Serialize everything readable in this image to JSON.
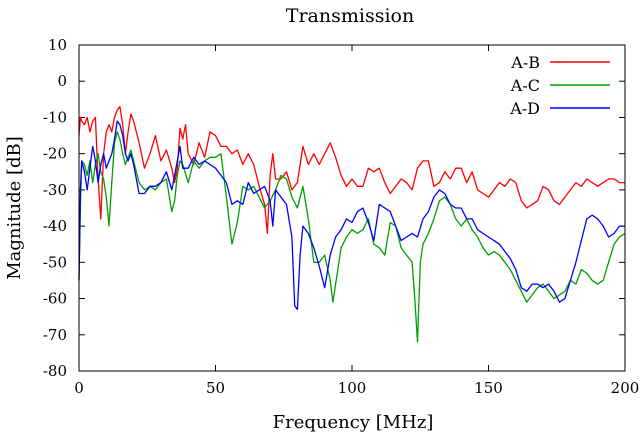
{
  "chart_data": {
    "type": "line",
    "title": "Transmission",
    "xlabel": "Frequency [MHz]",
    "ylabel": "Magnitude [dB]",
    "xlim": [
      0,
      200
    ],
    "ylim": [
      -80,
      10
    ],
    "xticks": [
      0,
      50,
      100,
      150,
      200
    ],
    "yticks": [
      10,
      0,
      -10,
      -20,
      -30,
      -40,
      -50,
      -60,
      -70,
      -80
    ],
    "x_tick_labels": [
      "0",
      "50",
      "100",
      "150",
      "200"
    ],
    "y_tick_labels": [
      "10",
      "0",
      "-10",
      "-20",
      "-30",
      "-40",
      "-50",
      "-60",
      "-70",
      "-80"
    ],
    "legend_position": "top-right",
    "grid": false,
    "series": [
      {
        "name": "A-B",
        "color": "#ff0000",
        "x": [
          0,
          0.5,
          1,
          2,
          3,
          4,
          5,
          6,
          7,
          8,
          9,
          10,
          11,
          12,
          13,
          14,
          15,
          16,
          17,
          18,
          19,
          20,
          22,
          24,
          26,
          28,
          30,
          32,
          34,
          35,
          36,
          37,
          38,
          39,
          40,
          42,
          44,
          46,
          48,
          50,
          52,
          54,
          56,
          58,
          60,
          62,
          64,
          66,
          68,
          69,
          70,
          71,
          72,
          74,
          76,
          78,
          80,
          82,
          84,
          86,
          88,
          90,
          92,
          94,
          96,
          98,
          100,
          102,
          104,
          106,
          108,
          110,
          112,
          114,
          116,
          118,
          120,
          122,
          124,
          126,
          128,
          130,
          132,
          134,
          136,
          138,
          140,
          142,
          144,
          146,
          148,
          150,
          152,
          154,
          156,
          158,
          160,
          162,
          164,
          166,
          168,
          170,
          172,
          174,
          176,
          178,
          180,
          182,
          184,
          186,
          188,
          190,
          192,
          194,
          196,
          198,
          200
        ],
        "y": [
          -15,
          -10,
          -11,
          -12,
          -10,
          -14,
          -11,
          -10,
          -27,
          -38,
          -20,
          -14,
          -12,
          -14,
          -10,
          -8,
          -7,
          -12,
          -20,
          -14,
          -9,
          -11,
          -17,
          -24,
          -20,
          -15,
          -22,
          -19,
          -24,
          -28,
          -24,
          -13,
          -16,
          -12,
          -20,
          -23,
          -17,
          -21,
          -14,
          -15,
          -18,
          -18,
          -20,
          -19,
          -23,
          -20,
          -23,
          -29,
          -34,
          -42,
          -26,
          -20,
          -27,
          -27,
          -25,
          -30,
          -28,
          -18,
          -23,
          -20,
          -23,
          -20,
          -17,
          -21,
          -26,
          -29,
          -27,
          -29,
          -29,
          -24,
          -25,
          -24,
          -28,
          -31,
          -29,
          -27,
          -28,
          -30,
          -24,
          -22,
          -22,
          -29,
          -28,
          -25,
          -27,
          -24,
          -24,
          -28,
          -25,
          -30,
          -31,
          -32,
          -30,
          -28,
          -29,
          -27,
          -28,
          -33,
          -35,
          -34,
          -33,
          -29,
          -30,
          -33,
          -34,
          -32,
          -30,
          -28,
          -29,
          -27,
          -28,
          -29,
          -28,
          -27,
          -27,
          -28,
          -28
        ]
      },
      {
        "name": "A-C",
        "color": "#00a000",
        "x": [
          0,
          0.5,
          1,
          2,
          3,
          4,
          5,
          6,
          7,
          8,
          9,
          10,
          11,
          12,
          13,
          14,
          15,
          16,
          17,
          18,
          19,
          20,
          22,
          24,
          26,
          28,
          30,
          32,
          34,
          35,
          36,
          37,
          38,
          40,
          42,
          44,
          46,
          48,
          50,
          52,
          54,
          56,
          58,
          60,
          62,
          64,
          66,
          68,
          70,
          72,
          74,
          76,
          78,
          80,
          82,
          84,
          86,
          88,
          90,
          92,
          93,
          94,
          96,
          98,
          100,
          102,
          104,
          106,
          108,
          110,
          112,
          114,
          116,
          118,
          120,
          122,
          123,
          124,
          125,
          126,
          128,
          130,
          132,
          134,
          136,
          138,
          140,
          142,
          144,
          146,
          148,
          150,
          152,
          154,
          156,
          158,
          160,
          162,
          164,
          166,
          168,
          170,
          172,
          174,
          176,
          178,
          180,
          182,
          184,
          186,
          188,
          190,
          192,
          194,
          196,
          198,
          200
        ],
        "y": [
          -55,
          -35,
          -22,
          -23,
          -26,
          -22,
          -28,
          -23,
          -20,
          -25,
          -27,
          -32,
          -40,
          -28,
          -17,
          -14,
          -16,
          -20,
          -23,
          -21,
          -19,
          -22,
          -28,
          -30,
          -29,
          -30,
          -28,
          -27,
          -36,
          -33,
          -26,
          -22,
          -23,
          -28,
          -22,
          -24,
          -22,
          -21,
          -21,
          -20,
          -32,
          -45,
          -39,
          -29,
          -30,
          -29,
          -32,
          -35,
          -33,
          -30,
          -26,
          -27,
          -32,
          -35,
          -29,
          -38,
          -50,
          -50,
          -48,
          -55,
          -61,
          -56,
          -46,
          -43,
          -41,
          -42,
          -41,
          -38,
          -45,
          -46,
          -48,
          -39,
          -40,
          -46,
          -48,
          -50,
          -60,
          -72,
          -50,
          -45,
          -42,
          -38,
          -33,
          -32,
          -34,
          -38,
          -40,
          -38,
          -41,
          -43,
          -46,
          -48,
          -47,
          -48,
          -50,
          -52,
          -55,
          -58,
          -61,
          -59,
          -57,
          -56,
          -58,
          -60,
          -59,
          -58,
          -55,
          -56,
          -52,
          -53,
          -55,
          -56,
          -55,
          -50,
          -45,
          -43,
          -42
        ]
      },
      {
        "name": "A-D",
        "color": "#0000ff",
        "x": [
          0,
          0.5,
          1,
          2,
          3,
          4,
          5,
          6,
          7,
          8,
          9,
          10,
          11,
          12,
          13,
          14,
          15,
          16,
          17,
          18,
          19,
          20,
          22,
          24,
          26,
          28,
          30,
          32,
          34,
          35,
          36,
          37,
          38,
          40,
          42,
          44,
          46,
          48,
          50,
          52,
          54,
          56,
          58,
          60,
          62,
          64,
          66,
          68,
          70,
          71,
          72,
          74,
          76,
          78,
          79,
          80,
          81,
          82,
          84,
          86,
          88,
          90,
          92,
          94,
          96,
          98,
          100,
          102,
          104,
          106,
          108,
          110,
          112,
          114,
          116,
          118,
          120,
          122,
          124,
          126,
          128,
          130,
          132,
          134,
          136,
          138,
          140,
          142,
          144,
          146,
          148,
          150,
          152,
          154,
          156,
          158,
          160,
          162,
          164,
          166,
          168,
          170,
          172,
          174,
          176,
          178,
          180,
          182,
          184,
          186,
          188,
          190,
          192,
          194,
          196,
          198,
          200
        ],
        "y": [
          -55,
          -30,
          -22,
          -25,
          -30,
          -24,
          -18,
          -22,
          -28,
          -23,
          -20,
          -24,
          -22,
          -20,
          -16,
          -11,
          -12,
          -15,
          -20,
          -22,
          -20,
          -23,
          -31,
          -31,
          -29,
          -29,
          -28,
          -25,
          -30,
          -26,
          -22,
          -18,
          -24,
          -24,
          -21,
          -23,
          -22,
          -23,
          -24,
          -26,
          -28,
          -34,
          -33,
          -34,
          -28,
          -31,
          -30,
          -29,
          -33,
          -40,
          -30,
          -32,
          -34,
          -43,
          -62,
          -63,
          -48,
          -40,
          -42,
          -46,
          -51,
          -57,
          -48,
          -43,
          -41,
          -38,
          -39,
          -36,
          -35,
          -39,
          -44,
          -34,
          -35,
          -36,
          -40,
          -44,
          -43,
          -42,
          -43,
          -38,
          -36,
          -32,
          -30,
          -31,
          -34,
          -35,
          -35,
          -38,
          -38,
          -41,
          -42,
          -43,
          -44,
          -45,
          -47,
          -49,
          -52,
          -57,
          -58,
          -56,
          -56,
          -57,
          -56,
          -58,
          -61,
          -60,
          -55,
          -50,
          -44,
          -38,
          -37,
          -38,
          -40,
          -43,
          -42,
          -40,
          -40
        ]
      }
    ]
  }
}
